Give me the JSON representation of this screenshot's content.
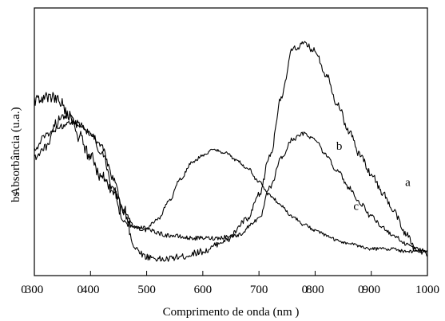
{
  "chart_data": {
    "type": "line",
    "title": "",
    "xlabel": "Comprimento de onda (nm )",
    "ylabel": "Absorbância (u.a.)",
    "ylabel_garbled_prefix": "bs",
    "xlim": [
      300,
      1000
    ],
    "ylim": [
      0,
      1
    ],
    "grid": false,
    "legend": "none",
    "x_tick_labels": [
      {
        "value": 300,
        "text": "300",
        "overlay": "0"
      },
      {
        "value": 400,
        "text": "400",
        "overlay": "0"
      },
      {
        "value": 500,
        "text": "500"
      },
      {
        "value": 600,
        "text": "600"
      },
      {
        "value": 700,
        "text": "700"
      },
      {
        "value": 800,
        "text": "800",
        "overlay": "0"
      },
      {
        "value": 900,
        "text": "900",
        "overlay": "0"
      },
      {
        "value": 1000,
        "text": "1000"
      }
    ],
    "series": [
      {
        "label": "a",
        "label_at": {
          "x": 965,
          "y": 0.335
        },
        "noise": 0.012,
        "x": [
          300,
          320,
          340,
          360,
          380,
          400,
          420,
          440,
          460,
          480,
          500,
          530,
          560,
          600,
          640,
          680,
          700,
          720,
          740,
          760,
          780,
          800,
          820,
          840,
          860,
          880,
          900,
          920,
          940,
          960,
          980,
          1000
        ],
        "y": [
          0.66,
          0.66,
          0.67,
          0.6,
          0.52,
          0.445,
          0.37,
          0.31,
          0.24,
          0.1,
          0.07,
          0.06,
          0.07,
          0.09,
          0.13,
          0.21,
          0.3,
          0.45,
          0.67,
          0.845,
          0.865,
          0.84,
          0.75,
          0.64,
          0.54,
          0.45,
          0.38,
          0.31,
          0.24,
          0.16,
          0.1,
          0.08
        ]
      },
      {
        "label": "b",
        "label_at": {
          "x": 843,
          "y": 0.47
        },
        "noise": 0.008,
        "x": [
          300,
          320,
          340,
          350,
          360,
          380,
          400,
          420,
          440,
          460,
          480,
          500,
          540,
          580,
          620,
          660,
          700,
          720,
          740,
          760,
          780,
          800,
          820,
          840,
          860,
          880,
          900,
          920,
          940,
          960,
          980,
          1000
        ],
        "y": [
          0.44,
          0.48,
          0.57,
          0.6,
          0.6,
          0.57,
          0.53,
          0.46,
          0.32,
          0.2,
          0.18,
          0.17,
          0.15,
          0.14,
          0.14,
          0.15,
          0.21,
          0.33,
          0.44,
          0.51,
          0.53,
          0.51,
          0.45,
          0.39,
          0.33,
          0.27,
          0.22,
          0.18,
          0.15,
          0.12,
          0.1,
          0.09
        ]
      },
      {
        "label": "c",
        "label_at": {
          "x": 873,
          "y": 0.245
        },
        "noise": 0.006,
        "x": [
          300,
          320,
          340,
          360,
          380,
          400,
          420,
          440,
          460,
          480,
          500,
          520,
          540,
          560,
          580,
          600,
          620,
          640,
          660,
          680,
          700,
          720,
          740,
          760,
          780,
          800,
          820,
          840,
          860,
          880,
          900,
          920,
          940,
          960,
          980,
          1000
        ],
        "y": [
          0.47,
          0.52,
          0.55,
          0.57,
          0.56,
          0.53,
          0.48,
          0.37,
          0.24,
          0.18,
          0.18,
          0.21,
          0.28,
          0.36,
          0.42,
          0.45,
          0.47,
          0.46,
          0.43,
          0.4,
          0.35,
          0.3,
          0.26,
          0.22,
          0.19,
          0.17,
          0.15,
          0.13,
          0.12,
          0.11,
          0.1,
          0.1,
          0.1,
          0.09,
          0.09,
          0.09
        ]
      }
    ]
  }
}
